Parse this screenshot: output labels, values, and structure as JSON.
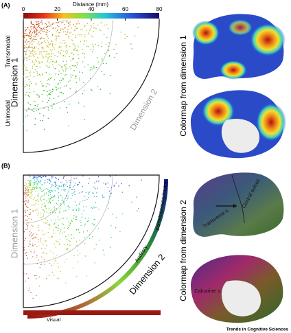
{
  "panel_a": {
    "label": "(A)",
    "colorbar": {
      "title": "Distance (mm)",
      "lim": [
        0,
        80
      ],
      "ticks": [
        0,
        20,
        40,
        60,
        80
      ]
    },
    "axis_top": "Transmodal",
    "axis_bottom": "Unimodal",
    "dimension_1": "Dimension 1",
    "dimension_2": "Dimension 2",
    "colormap_title": "Colormap from dimension 1"
  },
  "panel_b": {
    "label": "(B)",
    "dimension_1": "Dimension 1",
    "dimension_2": "Dimension 2",
    "band_labels": [
      "Somatosensory/motor",
      "Auditory",
      "Visual"
    ],
    "brain_labels": [
      "Central sulcus",
      "Transverse s.",
      "Calcarine s."
    ],
    "colormap_title": "Colormap from dimension 2"
  },
  "footer": "Trends in Cognitive Sciences"
}
